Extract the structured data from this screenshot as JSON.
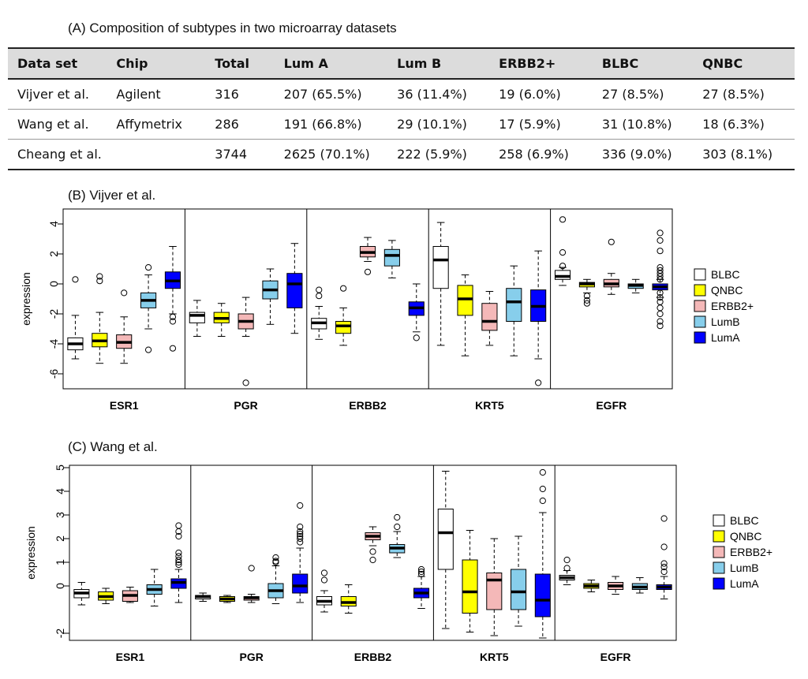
{
  "panel_a": {
    "title": "(A)  Composition of subtypes in two microarray datasets",
    "headers": [
      "Data set",
      "Chip",
      "Total",
      "Lum A",
      "Lum B",
      "ERBB2+",
      "BLBC",
      "QNBC"
    ],
    "rows": [
      [
        "Vijver et al.",
        "Agilent",
        "316",
        "207 (65.5%)",
        "36 (11.4%)",
        "19 (6.0%)",
        "27 (8.5%)",
        "27 (8.5%)"
      ],
      [
        "Wang et al.",
        "Affymetrix",
        "286",
        "191 (66.8%)",
        "29 (10.1%)",
        "17 (5.9%)",
        "31 (10.8%)",
        "18 (6.3%)"
      ],
      [
        "Cheang et al.",
        "",
        "3744",
        "2625 (70.1%)",
        "222 (5.9%)",
        "258 (6.9%)",
        "336 (9.0%)",
        "303 (8.1%)"
      ]
    ]
  },
  "colors": {
    "BLBC": "#ffffff",
    "QNBC": "#ffff00",
    "ERBB2+": "#f4b8b8",
    "LumB": "#87ceeb",
    "LumA": "#0000ff"
  },
  "chart_data": [
    {
      "type": "boxplot",
      "title": "(B)   Vijver et al.",
      "ylabel": "expression",
      "ylim": [
        -7,
        5
      ],
      "yticks": [
        4,
        2,
        0,
        -2,
        -4,
        -6
      ],
      "legend": [
        "BLBC",
        "QNBC",
        "ERBB2+",
        "LumB",
        "LumA"
      ],
      "legend_position": "right",
      "genes": [
        {
          "name": "ESR1",
          "boxes": [
            {
              "subtype": "BLBC",
              "lw": -5.0,
              "q1": -4.4,
              "med": -4.0,
              "q3": -3.6,
              "uw": -2.1,
              "out": [
                0.3
              ]
            },
            {
              "subtype": "QNBC",
              "lw": -5.3,
              "q1": -4.2,
              "med": -3.8,
              "q3": -3.3,
              "uw": -1.9,
              "out": [
                0.5,
                0.2
              ]
            },
            {
              "subtype": "ERBB2+",
              "lw": -5.3,
              "q1": -4.3,
              "med": -3.9,
              "q3": -3.4,
              "uw": -2.2,
              "out": [
                -0.6
              ]
            },
            {
              "subtype": "LumB",
              "lw": -3.0,
              "q1": -1.6,
              "med": -1.1,
              "q3": -0.6,
              "uw": 0.6,
              "out": [
                1.1,
                -4.4
              ]
            },
            {
              "subtype": "LumA",
              "lw": -2.0,
              "q1": -0.3,
              "med": 0.2,
              "q3": 0.8,
              "uw": 2.5,
              "out": [
                -2.2,
                -2.5,
                -4.3
              ]
            }
          ]
        },
        {
          "name": "PGR",
          "boxes": [
            {
              "subtype": "BLBC",
              "lw": -3.5,
              "q1": -2.6,
              "med": -2.1,
              "q3": -1.9,
              "uw": -1.1,
              "out": []
            },
            {
              "subtype": "QNBC",
              "lw": -3.5,
              "q1": -2.6,
              "med": -2.3,
              "q3": -1.9,
              "uw": -1.3,
              "out": []
            },
            {
              "subtype": "ERBB2+",
              "lw": -3.5,
              "q1": -3.0,
              "med": -2.5,
              "q3": -2.0,
              "uw": -0.9,
              "out": [
                -6.6
              ]
            },
            {
              "subtype": "LumB",
              "lw": -2.7,
              "q1": -1.0,
              "med": -0.4,
              "q3": 0.2,
              "uw": 1.0,
              "out": []
            },
            {
              "subtype": "LumA",
              "lw": -3.3,
              "q1": -1.6,
              "med": 0.0,
              "q3": 0.7,
              "uw": 2.7,
              "out": []
            }
          ]
        },
        {
          "name": "ERBB2",
          "boxes": [
            {
              "subtype": "BLBC",
              "lw": -3.7,
              "q1": -3.0,
              "med": -2.6,
              "q3": -2.3,
              "uw": -1.5,
              "out": [
                -0.4,
                -0.8
              ]
            },
            {
              "subtype": "QNBC",
              "lw": -4.1,
              "q1": -3.3,
              "med": -2.8,
              "q3": -2.5,
              "uw": -1.6,
              "out": [
                -0.3
              ]
            },
            {
              "subtype": "ERBB2+",
              "lw": 1.5,
              "q1": 1.8,
              "med": 2.1,
              "q3": 2.5,
              "uw": 3.1,
              "out": [
                0.8
              ]
            },
            {
              "subtype": "LumB",
              "lw": 0.4,
              "q1": 1.2,
              "med": 1.9,
              "q3": 2.3,
              "uw": 2.9,
              "out": []
            },
            {
              "subtype": "LumA",
              "lw": -3.2,
              "q1": -2.1,
              "med": -1.6,
              "q3": -1.2,
              "uw": 0.0,
              "out": [
                -3.6
              ]
            }
          ]
        },
        {
          "name": "KRT5",
          "boxes": [
            {
              "subtype": "BLBC",
              "lw": -4.1,
              "q1": -0.3,
              "med": 1.6,
              "q3": 2.5,
              "uw": 4.1,
              "out": []
            },
            {
              "subtype": "QNBC",
              "lw": -4.8,
              "q1": -2.1,
              "med": -1.0,
              "q3": -0.1,
              "uw": 0.6,
              "out": []
            },
            {
              "subtype": "ERBB2+",
              "lw": -4.1,
              "q1": -3.1,
              "med": -2.5,
              "q3": -1.3,
              "uw": -0.5,
              "out": []
            },
            {
              "subtype": "LumB",
              "lw": -4.8,
              "q1": -2.5,
              "med": -1.2,
              "q3": -0.3,
              "uw": 1.2,
              "out": []
            },
            {
              "subtype": "LumA",
              "lw": -5.0,
              "q1": -2.5,
              "med": -1.5,
              "q3": -0.4,
              "uw": 2.2,
              "out": [
                -6.6
              ]
            }
          ]
        },
        {
          "name": "EGFR",
          "boxes": [
            {
              "subtype": "BLBC",
              "lw": -0.1,
              "q1": 0.3,
              "med": 0.5,
              "q3": 0.9,
              "uw": 1.1,
              "out": [
                4.3,
                2.1,
                1.2
              ]
            },
            {
              "subtype": "QNBC",
              "lw": -0.6,
              "q1": -0.2,
              "med": 0.0,
              "q3": 0.1,
              "uw": 0.3,
              "out": [
                -0.8,
                -1.1,
                -1.3
              ]
            },
            {
              "subtype": "ERBB2+",
              "lw": -0.7,
              "q1": -0.2,
              "med": 0.0,
              "q3": 0.3,
              "uw": 0.7,
              "out": [
                2.8
              ]
            },
            {
              "subtype": "LumB",
              "lw": -0.6,
              "q1": -0.3,
              "med": -0.1,
              "q3": 0.0,
              "uw": 0.3,
              "out": []
            },
            {
              "subtype": "LumA",
              "lw": -0.9,
              "q1": -0.4,
              "med": -0.2,
              "q3": 0.0,
              "uw": 0.3,
              "out": [
                3.4,
                2.9,
                2.2,
                1.1,
                0.9,
                0.7,
                0.5,
                0.3,
                -0.6,
                -0.9,
                -1.2,
                -1.6,
                -2.0,
                -2.5,
                -2.8
              ]
            }
          ]
        }
      ]
    },
    {
      "type": "boxplot",
      "title": "(C)   Wang et al.",
      "ylabel": "expression",
      "ylim": [
        -2.3,
        5.1
      ],
      "yticks": [
        5,
        4,
        3,
        2,
        1,
        0,
        -2
      ],
      "legend": [
        "BLBC",
        "QNBC",
        "ERBB2+",
        "LumB",
        "LumA"
      ],
      "legend_position": "right",
      "genes": [
        {
          "name": "ESR1",
          "boxes": [
            {
              "subtype": "BLBC",
              "lw": -0.8,
              "q1": -0.5,
              "med": -0.3,
              "q3": -0.15,
              "uw": 0.15,
              "out": []
            },
            {
              "subtype": "QNBC",
              "lw": -0.75,
              "q1": -0.6,
              "med": -0.45,
              "q3": -0.25,
              "uw": -0.1,
              "out": []
            },
            {
              "subtype": "ERBB2+",
              "lw": -0.7,
              "q1": -0.65,
              "med": -0.4,
              "q3": -0.2,
              "uw": -0.05,
              "out": []
            },
            {
              "subtype": "LumB",
              "lw": -0.85,
              "q1": -0.35,
              "med": -0.15,
              "q3": 0.05,
              "uw": 0.7,
              "out": []
            },
            {
              "subtype": "LumA",
              "lw": -0.7,
              "q1": -0.1,
              "med": 0.15,
              "q3": 0.3,
              "uw": 0.7,
              "out": [
                2.55,
                2.3,
                2.1,
                1.4,
                1.25,
                1.1,
                1.0,
                0.9
              ]
            }
          ]
        },
        {
          "name": "PGR",
          "boxes": [
            {
              "subtype": "BLBC",
              "lw": -0.65,
              "q1": -0.55,
              "med": -0.45,
              "q3": -0.4,
              "uw": -0.3,
              "out": []
            },
            {
              "subtype": "QNBC",
              "lw": -0.7,
              "q1": -0.65,
              "med": -0.55,
              "q3": -0.45,
              "uw": -0.4,
              "out": []
            },
            {
              "subtype": "ERBB2+",
              "lw": -0.7,
              "q1": -0.6,
              "med": -0.5,
              "q3": -0.45,
              "uw": -0.35,
              "out": [
                0.75
              ]
            },
            {
              "subtype": "LumB",
              "lw": -0.75,
              "q1": -0.5,
              "med": -0.2,
              "q3": 0.1,
              "uw": 0.85,
              "out": [
                1.2,
                1.05,
                1.0
              ]
            },
            {
              "subtype": "LumA",
              "lw": -0.7,
              "q1": -0.3,
              "med": 0.0,
              "q3": 0.5,
              "uw": 1.6,
              "out": [
                3.4,
                2.5,
                2.3,
                2.2,
                2.1,
                2.0,
                1.85
              ]
            }
          ]
        },
        {
          "name": "ERBB2",
          "boxes": [
            {
              "subtype": "BLBC",
              "lw": -1.1,
              "q1": -0.8,
              "med": -0.65,
              "q3": -0.45,
              "uw": -0.2,
              "out": [
                0.55,
                0.25
              ]
            },
            {
              "subtype": "QNBC",
              "lw": -1.15,
              "q1": -0.85,
              "med": -0.7,
              "q3": -0.45,
              "uw": 0.05,
              "out": []
            },
            {
              "subtype": "ERBB2+",
              "lw": 1.7,
              "q1": 1.95,
              "med": 2.1,
              "q3": 2.25,
              "uw": 2.5,
              "out": [
                1.45,
                1.1
              ]
            },
            {
              "subtype": "LumB",
              "lw": 1.2,
              "q1": 1.4,
              "med": 1.6,
              "q3": 1.75,
              "uw": 2.3,
              "out": [
                2.9,
                2.5
              ]
            },
            {
              "subtype": "LumA",
              "lw": -0.95,
              "q1": -0.5,
              "med": -0.3,
              "q3": -0.1,
              "uw": 0.4,
              "out": [
                0.7,
                0.6,
                0.5
              ]
            }
          ]
        },
        {
          "name": "KRT5",
          "boxes": [
            {
              "subtype": "BLBC",
              "lw": -1.8,
              "q1": 0.7,
              "med": 2.25,
              "q3": 3.25,
              "uw": 4.85,
              "out": []
            },
            {
              "subtype": "QNBC",
              "lw": -1.95,
              "q1": -1.15,
              "med": -0.25,
              "q3": 1.1,
              "uw": 2.35,
              "out": []
            },
            {
              "subtype": "ERBB2+",
              "lw": -2.1,
              "q1": -1.0,
              "med": 0.25,
              "q3": 0.55,
              "uw": 2.0,
              "out": []
            },
            {
              "subtype": "LumB",
              "lw": -1.7,
              "q1": -1.0,
              "med": -0.25,
              "q3": 0.7,
              "uw": 2.1,
              "out": []
            },
            {
              "subtype": "LumA",
              "lw": -2.2,
              "q1": -1.3,
              "med": -0.6,
              "q3": 0.5,
              "uw": 3.1,
              "out": [
                4.8,
                4.1,
                3.6
              ]
            }
          ]
        },
        {
          "name": "EGFR",
          "boxes": [
            {
              "subtype": "BLBC",
              "lw": 0.05,
              "q1": 0.25,
              "med": 0.35,
              "q3": 0.45,
              "uw": 0.65,
              "out": [
                1.1,
                0.75
              ]
            },
            {
              "subtype": "QNBC",
              "lw": -0.25,
              "q1": -0.1,
              "med": 0.0,
              "q3": 0.1,
              "uw": 0.25,
              "out": []
            },
            {
              "subtype": "ERBB2+",
              "lw": -0.35,
              "q1": -0.15,
              "med": 0.0,
              "q3": 0.15,
              "uw": 0.4,
              "out": []
            },
            {
              "subtype": "LumB",
              "lw": -0.3,
              "q1": -0.15,
              "med": -0.05,
              "q3": 0.1,
              "uw": 0.35,
              "out": []
            },
            {
              "subtype": "LumA",
              "lw": -0.55,
              "q1": -0.15,
              "med": -0.05,
              "q3": 0.05,
              "uw": 0.4,
              "out": [
                2.85,
                1.65,
                0.95,
                0.8,
                0.6
              ]
            }
          ]
        }
      ]
    }
  ]
}
